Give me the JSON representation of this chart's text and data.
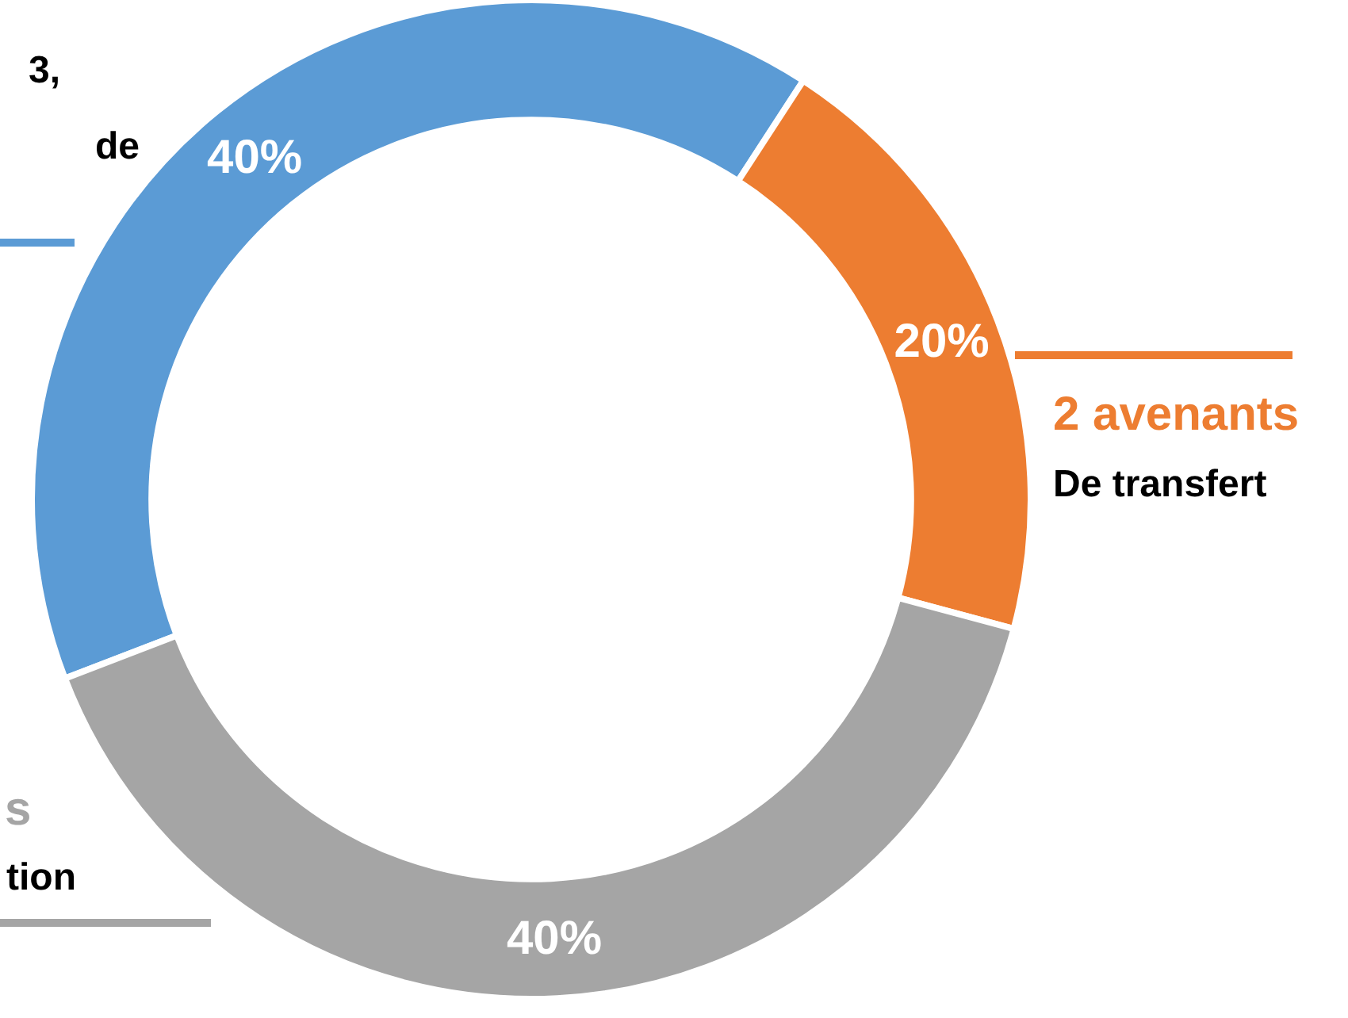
{
  "chart_data": {
    "type": "donut",
    "categories": [
      null,
      "2 avenants",
      "s"
    ],
    "values": [
      40,
      20,
      40
    ],
    "colors": [
      "#5b9bd5",
      "#ed7d31",
      "#a5a5a5"
    ],
    "value_labels": [
      "40%",
      "20%",
      "40%"
    ],
    "annotations": [
      "3,",
      "de",
      "De transfert",
      "tion"
    ],
    "legend": false
  }
}
